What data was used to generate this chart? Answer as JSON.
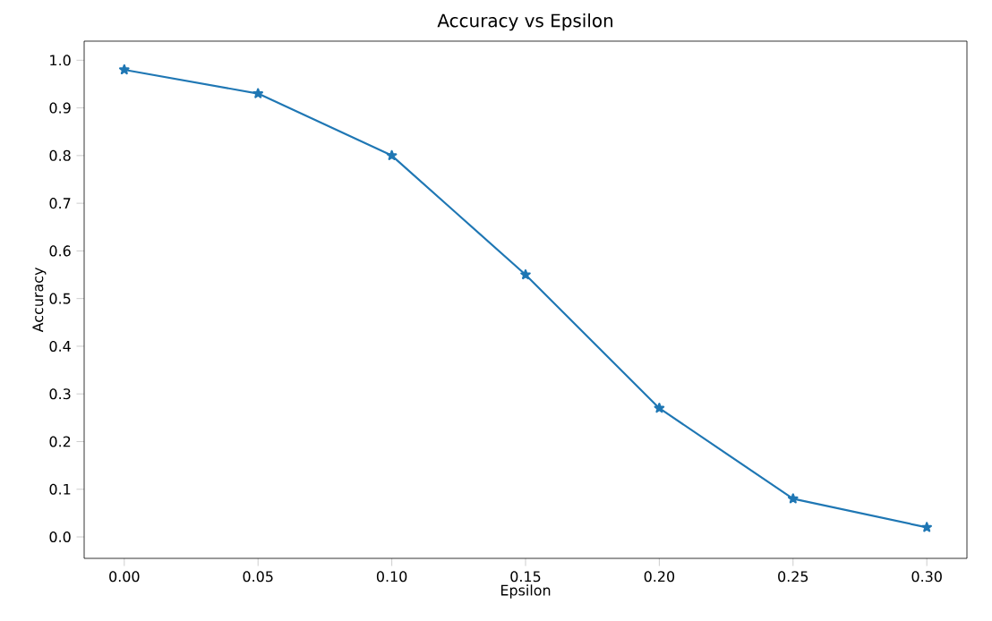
{
  "chart_data": {
    "type": "line",
    "title": "Accuracy vs Epsilon",
    "xlabel": "Epsilon",
    "ylabel": "Accuracy",
    "x": [
      0.0,
      0.05,
      0.1,
      0.15,
      0.2,
      0.25,
      0.3
    ],
    "series": [
      {
        "color": "#1f77b4",
        "values": [
          0.98,
          0.93,
          0.8,
          0.55,
          0.27,
          0.08,
          0.02
        ]
      }
    ],
    "xlim": [
      -0.015,
      0.315
    ],
    "ylim": [
      -0.045,
      1.04
    ],
    "xticks": [
      {
        "value": 0.0,
        "label": "0.00"
      },
      {
        "value": 0.05,
        "label": "0.05"
      },
      {
        "value": 0.1,
        "label": "0.10"
      },
      {
        "value": 0.15,
        "label": "0.15"
      },
      {
        "value": 0.2,
        "label": "0.20"
      },
      {
        "value": 0.25,
        "label": "0.25"
      },
      {
        "value": 0.3,
        "label": "0.30"
      }
    ],
    "yticks": [
      {
        "value": 0.0,
        "label": "0.0"
      },
      {
        "value": 0.1,
        "label": "0.1"
      },
      {
        "value": 0.2,
        "label": "0.2"
      },
      {
        "value": 0.3,
        "label": "0.3"
      },
      {
        "value": 0.4,
        "label": "0.4"
      },
      {
        "value": 0.5,
        "label": "0.5"
      },
      {
        "value": 0.6,
        "label": "0.6"
      },
      {
        "value": 0.7,
        "label": "0.7"
      },
      {
        "value": 0.8,
        "label": "0.8"
      },
      {
        "value": 0.9,
        "label": "0.9"
      },
      {
        "value": 1.0,
        "label": "1.0"
      }
    ],
    "marker": "star",
    "grid": false
  }
}
